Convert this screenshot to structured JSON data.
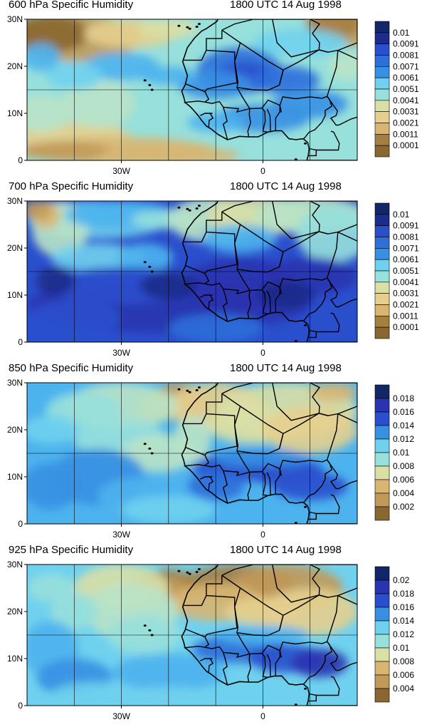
{
  "palette": [
    "#8a6630",
    "#a57e42",
    "#c19a5a",
    "#d8b672",
    "#e6cf8e",
    "#d9dfa5",
    "#b9e3c6",
    "#97e0dc",
    "#70d1ee",
    "#4db3ee",
    "#3890e3",
    "#2e6fda",
    "#2a4fcd",
    "#2a33b0",
    "#1d2b8a",
    "#132667"
  ],
  "axes": {
    "lat_labels": [
      "30N",
      "20N",
      "10N",
      "0"
    ],
    "lon_labels": [
      "30W",
      "0"
    ]
  },
  "panels": [
    {
      "title": "600 hPa Specific Humidity",
      "time": "1800 UTC 14 Aug 1998",
      "colorbar_labels": [
        "0.01",
        "0.0091",
        "0.0081",
        "0.0071",
        "0.0061",
        "0.0051",
        "0.0041",
        "0.0031",
        "0.0021",
        "0.0011",
        "0.0001"
      ],
      "pattern": "p600"
    },
    {
      "title": "700 hPa Specific Humidity",
      "time": "1800 UTC 14 Aug 1998",
      "colorbar_labels": [
        "0.01",
        "0.0091",
        "0.0081",
        "0.0071",
        "0.0061",
        "0.0051",
        "0.0041",
        "0.0031",
        "0.0021",
        "0.0011",
        "0.0001"
      ],
      "pattern": "p700"
    },
    {
      "title": "850 hPa Specific Humidity",
      "time": "1800 UTC 14 Aug 1998",
      "colorbar_labels": [
        "0.018",
        "0.016",
        "0.014",
        "0.012",
        "0.01",
        "0.008",
        "0.006",
        "0.004",
        "0.002"
      ],
      "pattern": "p850"
    },
    {
      "title": "925 hPa Specific Humidity",
      "time": "1800 UTC 14 Aug 1998",
      "colorbar_labels": [
        "0.02",
        "0.018",
        "0.016",
        "0.014",
        "0.012",
        "0.01",
        "0.008",
        "0.006",
        "0.004"
      ],
      "pattern": "p925"
    }
  ]
}
